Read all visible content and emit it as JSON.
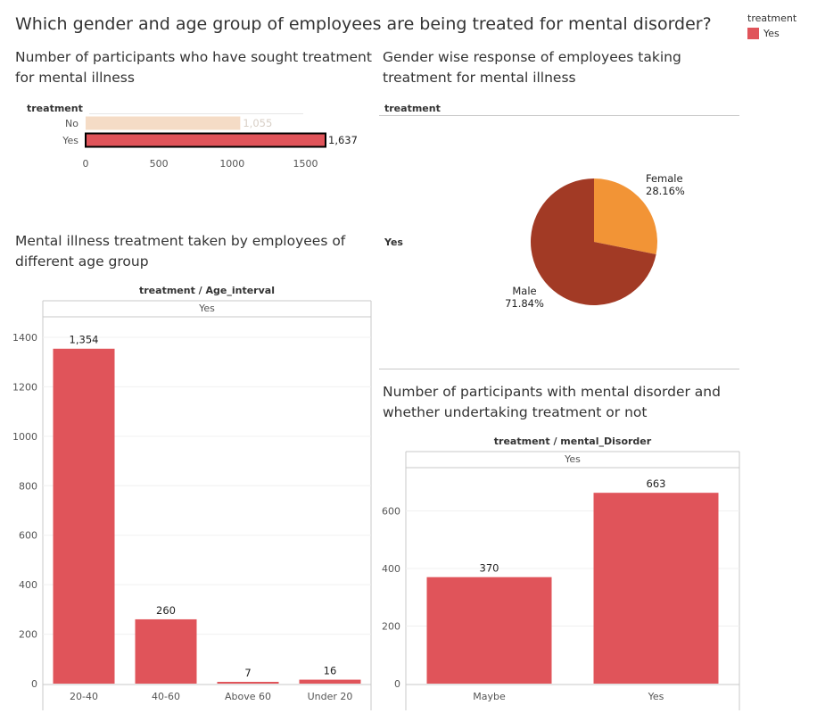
{
  "dashboard": {
    "title": "Which gender and age group of employees are being treated for mental disorder?",
    "legend": {
      "title": "treatment",
      "items": [
        {
          "label": "Yes",
          "color": "#e0545a"
        }
      ]
    }
  },
  "chart_data": [
    {
      "type": "bar",
      "orientation": "horizontal",
      "title": "Number of participants who have sought treatment for mental illness",
      "row_header": "treatment",
      "categories": [
        "No",
        "Yes"
      ],
      "values": [
        1055,
        1637
      ],
      "value_labels": [
        "1,055",
        "1,637"
      ],
      "colors": [
        "#f5dcc6",
        "#e0545a"
      ],
      "highlighted": "Yes",
      "xticks": [
        "0",
        "500",
        "1000",
        "1500"
      ],
      "xlim": [
        0,
        1637
      ]
    },
    {
      "type": "pie",
      "title": "Gender wise response of employees taking treatment for mental illness",
      "row_header": "treatment",
      "row_label": "Yes",
      "slices": [
        {
          "label": "Female",
          "percent_label": "28.16%",
          "value": 28.16,
          "color": "#f29436"
        },
        {
          "label": "Male",
          "percent_label": "71.84%",
          "value": 71.84,
          "color": "#a23a25"
        }
      ]
    },
    {
      "type": "bar",
      "title": "Mental illness treatment taken by employees of different age group",
      "header": "treatment / Age_interval",
      "panel_label": "Yes",
      "categories": [
        "20-40",
        "40-60",
        "Above 60",
        "Under 20"
      ],
      "values": [
        1354,
        260,
        7,
        16
      ],
      "value_labels": [
        "1,354",
        "260",
        "7",
        "16"
      ],
      "color": "#e0545a",
      "yticks": [
        "0",
        "200",
        "400",
        "600",
        "800",
        "1000",
        "1200",
        "1400"
      ],
      "ylim": [
        0,
        1400
      ]
    },
    {
      "type": "bar",
      "title": "Number of participants with mental disorder and whether undertaking treatment or not",
      "header": "treatment / mental_Disorder",
      "panel_label": "Yes",
      "categories": [
        "Maybe",
        "Yes"
      ],
      "values": [
        370,
        663
      ],
      "value_labels": [
        "370",
        "663"
      ],
      "color": "#e0545a",
      "yticks": [
        "0",
        "200",
        "400",
        "600"
      ],
      "ylim": [
        0,
        600
      ]
    }
  ]
}
